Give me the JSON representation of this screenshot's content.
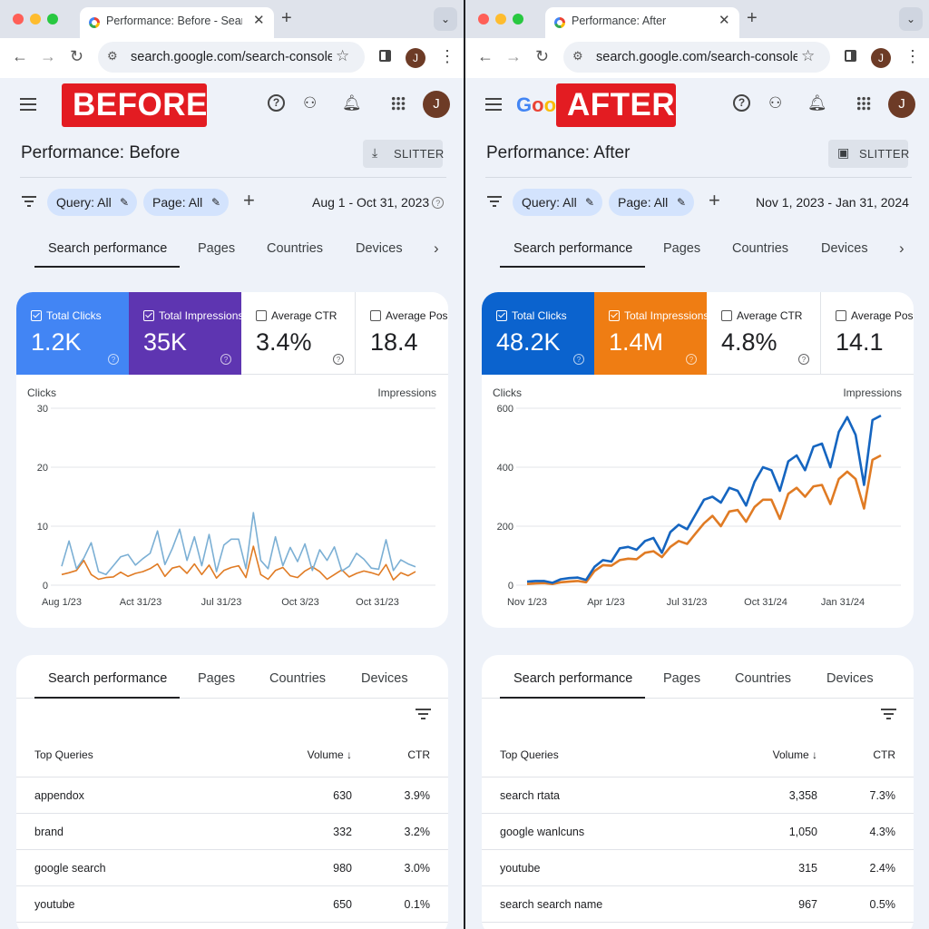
{
  "panes": [
    {
      "browser": {
        "tab_title": "Performance: Before - Search Console",
        "url": "search.google.com/search-console/performance"
      },
      "label": "BEFORE",
      "logo": "",
      "page_title": "Performance: Before",
      "export_label": "SLITTER",
      "filters": {
        "query_chip": "Query: All",
        "page_chip": "Page: All",
        "date_range": "Aug 1 - Oct 31, 2023"
      },
      "tabs": [
        "Search performance",
        "Pages",
        "Countries",
        "Devices"
      ],
      "metrics": [
        {
          "label": "Total Clicks",
          "value": "1.2K",
          "selected": true,
          "color": "#4285f4"
        },
        {
          "label": "Total Impressions",
          "value": "35K",
          "selected": true,
          "color": "#5e35b1"
        },
        {
          "label": "Average CTR",
          "value": "3.4%",
          "selected": false,
          "color": "#ffffff"
        },
        {
          "label": "Average Position",
          "value": "18.4",
          "selected": false,
          "color": "#ffffff"
        }
      ],
      "chart_data": {
        "type": "line",
        "ylabel_left": "Clicks",
        "ylabel_right": "Impressions",
        "ylim": [
          0,
          30
        ],
        "yticks": [
          0,
          10,
          20,
          30
        ],
        "xtick_labels": [
          "Aug 1/23",
          "Act 31/23",
          "Jul 31/23",
          "Oct 3/23",
          "Oct 31/23"
        ],
        "grid": true,
        "series": [
          {
            "color": "#7bafd4",
            "values": [
              3.2,
              7.5,
              2.8,
              4.6,
              7.2,
              2.3,
              1.8,
              3.3,
              4.8,
              5.2,
              3.4,
              4.5,
              5.4,
              9.2,
              3.5,
              6.2,
              9.5,
              4.2,
              8.2,
              3.3,
              8.6,
              2.3,
              6.8,
              7.8,
              7.8,
              2.8,
              12.3,
              4.2,
              2.8,
              8.2,
              3.3,
              6.4,
              4.0,
              7.0,
              2.5,
              6.0,
              4.2,
              6.5,
              2.4,
              3.2,
              5.4,
              4.4,
              2.9,
              2.7,
              7.7,
              2.5,
              4.3,
              3.6,
              3.1
            ]
          },
          {
            "color": "#e07b24",
            "values": [
              1.8,
              2.1,
              2.5,
              4.2,
              1.8,
              1.0,
              1.3,
              1.4,
              2.2,
              1.5,
              2.0,
              2.3,
              2.8,
              3.6,
              1.5,
              2.9,
              3.2,
              2.0,
              3.6,
              1.8,
              3.4,
              1.2,
              2.5,
              3.0,
              3.3,
              1.3,
              6.6,
              1.8,
              1.0,
              2.5,
              3.0,
              1.6,
              1.3,
              2.4,
              3.1,
              2.3,
              1.0,
              1.8,
              2.6,
              1.4,
              2.0,
              2.4,
              2.1,
              1.7,
              3.5,
              0.9,
              2.1,
              1.6,
              2.3
            ]
          }
        ]
      },
      "table": {
        "tabs": [
          "Search performance",
          "Pages",
          "Countries",
          "Devices"
        ],
        "headers": {
          "query": "Top Queries",
          "volume": "Volume ↓",
          "ctr": "CTR"
        },
        "rows": [
          {
            "query": "appendox",
            "volume": "630",
            "ctr": "3.9%"
          },
          {
            "query": "brand",
            "volume": "332",
            "ctr": "3.2%"
          },
          {
            "query": "google search",
            "volume": "980",
            "ctr": "3.0%"
          },
          {
            "query": "youtube",
            "volume": "650",
            "ctr": "0.1%"
          }
        ]
      }
    },
    {
      "browser": {
        "tab_title": "Performance: After",
        "url": "search.google.com/search-console/performance"
      },
      "label": "AFTER",
      "logo": "Goo",
      "page_title": "Performance: After",
      "export_label": "SLITTER",
      "filters": {
        "query_chip": "Query: All",
        "page_chip": "Page: All",
        "date_range": "Nov 1, 2023 - Jan 31, 2024"
      },
      "tabs": [
        "Search performance",
        "Pages",
        "Countries",
        "Devices"
      ],
      "metrics": [
        {
          "label": "Total Clicks",
          "value": "48.2K",
          "selected": true,
          "color": "#0b63ce"
        },
        {
          "label": "Total Impressions",
          "value": "1.4M",
          "selected": true,
          "color": "#ef7d13"
        },
        {
          "label": "Average CTR",
          "value": "4.8%",
          "selected": false,
          "color": "#ffffff"
        },
        {
          "label": "Average Position",
          "value": "14.1",
          "selected": false,
          "color": "#ffffff"
        }
      ],
      "chart_data": {
        "type": "line",
        "ylabel_left": "Clicks",
        "ylabel_right": "Impressions",
        "ylim": [
          0,
          600
        ],
        "yticks": [
          0,
          200,
          400,
          600
        ],
        "xtick_labels": [
          "Nov 1/23",
          "Apr 1/23",
          "Jul 31/23",
          "Oct 31/24",
          "Jan 31/24"
        ],
        "grid": true,
        "series": [
          {
            "color": "#1565c0",
            "values": [
              12,
              14,
              14,
              8,
              20,
              24,
              26,
              18,
              62,
              85,
              80,
              125,
              130,
              120,
              150,
              160,
              110,
              180,
              205,
              190,
              240,
              290,
              300,
              280,
              330,
              320,
              270,
              350,
              400,
              390,
              320,
              420,
              440,
              390,
              470,
              480,
              400,
              520,
              570,
              510,
              340,
              560,
              575
            ]
          },
          {
            "color": "#e07b24",
            "values": [
              4,
              6,
              7,
              4,
              10,
              12,
              14,
              10,
              48,
              68,
              66,
              85,
              90,
              88,
              110,
              115,
              95,
              130,
              150,
              140,
              175,
              210,
              235,
              200,
              250,
              255,
              215,
              265,
              290,
              290,
              225,
              310,
              330,
              300,
              335,
              340,
              275,
              360,
              385,
              360,
              260,
              425,
              440
            ]
          }
        ]
      },
      "table": {
        "tabs": [
          "Search performance",
          "Pages",
          "Countries",
          "Devices"
        ],
        "headers": {
          "query": "Top Queries",
          "volume": "Volume ↓",
          "ctr": "CTR"
        },
        "rows": [
          {
            "query": "search rtata",
            "volume": "3,358",
            "ctr": "7.3%"
          },
          {
            "query": "google wanlcuns",
            "volume": "1,050",
            "ctr": "4.3%"
          },
          {
            "query": "youtube",
            "volume": "315",
            "ctr": "2.4%"
          },
          {
            "query": "search search name",
            "volume": "967",
            "ctr": "0.5%"
          }
        ]
      }
    }
  ]
}
